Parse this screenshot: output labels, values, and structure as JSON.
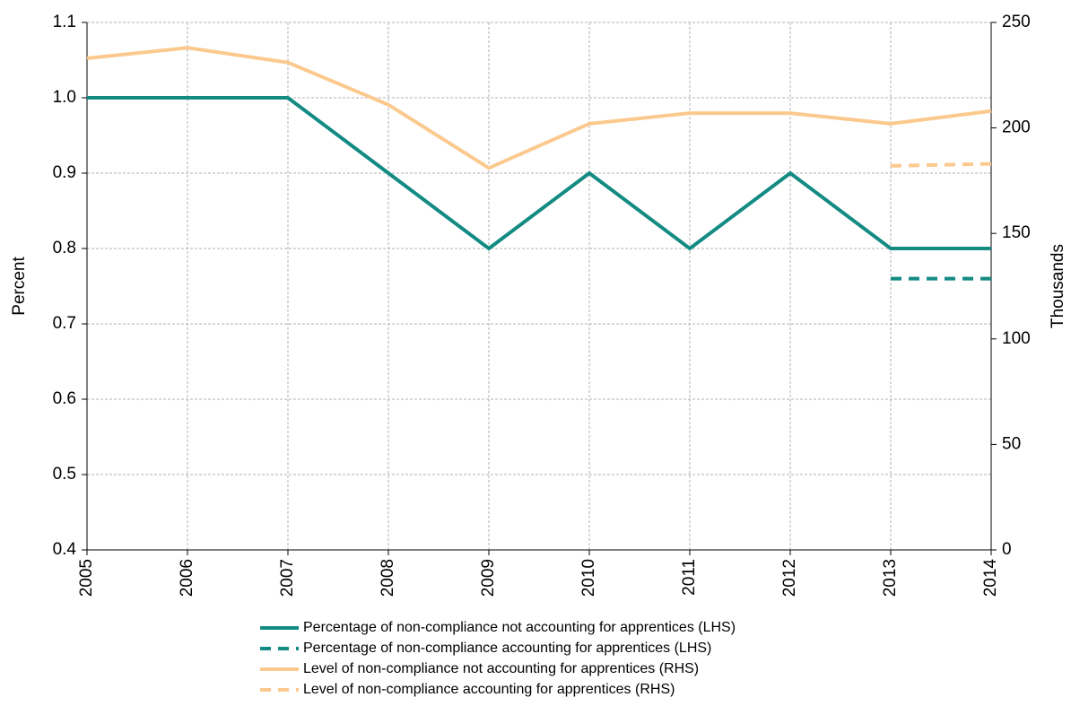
{
  "chart_data": {
    "type": "line",
    "x": [
      2005,
      2006,
      2007,
      2008,
      2009,
      2010,
      2011,
      2012,
      2013,
      2014
    ],
    "xlim": [
      2005,
      2014
    ],
    "xticks": [
      2005,
      2006,
      2007,
      2008,
      2009,
      2010,
      2011,
      2012,
      2013,
      2014
    ],
    "ylim": [
      0.4,
      1.1
    ],
    "yticks": [
      0.4,
      0.5,
      0.6,
      0.7,
      0.8,
      0.9,
      {
        "value": 1,
        "label": "1.0"
      },
      1.1
    ],
    "y2lim": [
      0,
      250
    ],
    "y2ticks": [
      0,
      50,
      100,
      150,
      200,
      250
    ],
    "y_label": "Percent",
    "y2_label": "Thousands",
    "grid": true,
    "legend": "bottom",
    "series": [
      {
        "name": "Percentage of non-compliance not accounting for apprentices (LHS)",
        "color": "#138b83",
        "line_style": "solid",
        "values": [
          1.0,
          1.0,
          1.0,
          0.9,
          0.8,
          0.9,
          0.8,
          0.9,
          0.8,
          0.8
        ]
      },
      {
        "name": "Percentage of non-compliance accounting for apprentices (LHS)",
        "color": "#138b83",
        "line_style": "dashed",
        "values": [
          null,
          null,
          null,
          null,
          null,
          null,
          null,
          null,
          0.76,
          0.76
        ]
      },
      {
        "name": "Level of non-compliance not accounting for apprentices (RHS)",
        "color": "#fbc98e",
        "line_style": "solid",
        "axis": "y2",
        "values": [
          233,
          238,
          231,
          211,
          181,
          202,
          207,
          207,
          202,
          208
        ]
      },
      {
        "name": "Level of non-compliance accounting for apprentices (RHS)",
        "color": "#fbc98e",
        "line_style": "dashed",
        "axis": "y2",
        "values": [
          null,
          null,
          null,
          null,
          null,
          null,
          null,
          null,
          182,
          183
        ]
      }
    ]
  }
}
